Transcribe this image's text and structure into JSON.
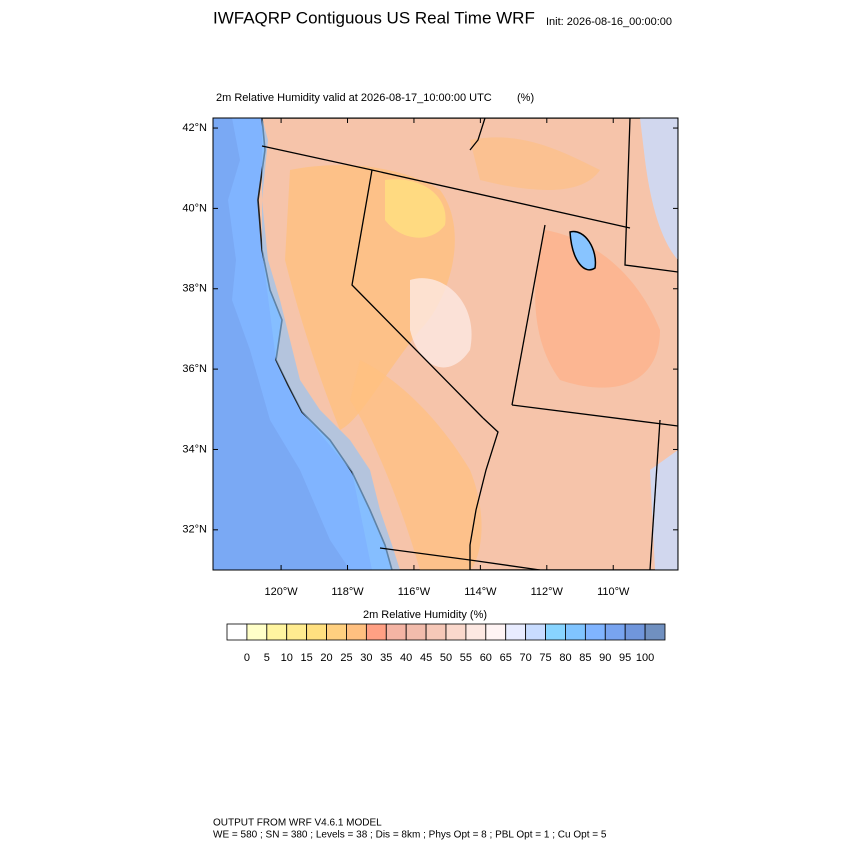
{
  "title": "IWFAQRP Contiguous US Real Time WRF",
  "init": "Init: 2026-08-16_00:00:00",
  "subtitle": "2m Relative Humidity valid at 2026-08-17_10:00:00 UTC",
  "units": "(%)",
  "map": {
    "ylim": [
      31.0,
      42.25
    ],
    "xlim": [
      122.05,
      108.05
    ],
    "yticks": [
      {
        "value": 42,
        "label": "42°N"
      },
      {
        "value": 40,
        "label": "40°N"
      },
      {
        "value": 38,
        "label": "38°N"
      },
      {
        "value": 36,
        "label": "36°N"
      },
      {
        "value": 34,
        "label": "34°N"
      },
      {
        "value": 32,
        "label": "32°N"
      }
    ],
    "xticks": [
      {
        "value": 120,
        "label": "120°W"
      },
      {
        "value": 118,
        "label": "118°W"
      },
      {
        "value": 116,
        "label": "116°W"
      },
      {
        "value": 114,
        "label": "114°W"
      },
      {
        "value": 112,
        "label": "112°W"
      },
      {
        "value": 110,
        "label": "110°W"
      }
    ]
  },
  "colorbar": {
    "title": "2m Relative Humidity  (%)",
    "levels": [
      0,
      5,
      10,
      15,
      20,
      25,
      30,
      35,
      40,
      45,
      50,
      55,
      60,
      65,
      70,
      75,
      80,
      85,
      90,
      95,
      100
    ],
    "colors": [
      "#ffffff",
      "#ffffc8",
      "#fff5a0",
      "#ffec90",
      "#ffe080",
      "#ffd080",
      "#ffc080",
      "#ffa084",
      "#f4b4a4",
      "#f2bcac",
      "#f6c8b8",
      "#fad8cc",
      "#fde8e2",
      "#fff4f4",
      "#e8ecff",
      "#c8dcff",
      "#88d4ff",
      "#80c4ff",
      "#80b4ff",
      "#78a4f0",
      "#7096dc",
      "#7090c0"
    ]
  },
  "footer": [
    "OUTPUT FROM WRF V4.6.1 MODEL",
    "WE = 580 ; SN = 380 ; Levels = 38 ; Dis = 8km ; Phys Opt = 8 ; PBL Opt = 1 ; Cu Opt = 5"
  ]
}
